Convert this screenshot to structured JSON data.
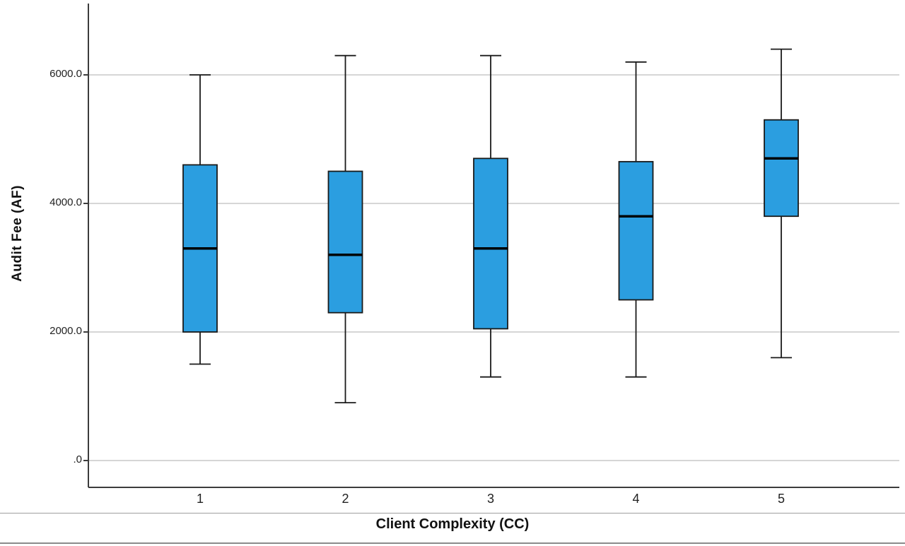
{
  "chart_data": {
    "type": "boxplot",
    "title": "",
    "xlabel": "Client Complexity (CC)",
    "ylabel": "Audit Fee (AF)",
    "categories": [
      "1",
      "2",
      "3",
      "4",
      "5"
    ],
    "ytick_labels": [
      ".0",
      "2000.0",
      "4000.0",
      "6000.0"
    ],
    "ytick_values": [
      0,
      2000,
      4000,
      6000
    ],
    "ylim": [
      -420,
      7100
    ],
    "grid": true,
    "legend": null,
    "boxes": [
      {
        "category": "1",
        "whisker_low": 1500,
        "q1": 2000,
        "median": 3300,
        "q3": 4600,
        "whisker_high": 6000
      },
      {
        "category": "2",
        "whisker_low": 900,
        "q1": 2300,
        "median": 3200,
        "q3": 4500,
        "whisker_high": 6300
      },
      {
        "category": "3",
        "whisker_low": 1300,
        "q1": 2050,
        "median": 3300,
        "q3": 4700,
        "whisker_high": 6300
      },
      {
        "category": "4",
        "whisker_low": 1300,
        "q1": 2500,
        "median": 3800,
        "q3": 4650,
        "whisker_high": 6200
      },
      {
        "category": "5",
        "whisker_low": 1600,
        "q1": 3800,
        "median": 4700,
        "q3": 5300,
        "whisker_high": 6400
      }
    ],
    "colors": {
      "box_fill": "#2B9EE0",
      "box_border": "#1a1a1a",
      "median": "#000000",
      "grid": "#d6d6d6",
      "axis": "#3c3c3c",
      "separator": "#9e9e9e"
    }
  }
}
